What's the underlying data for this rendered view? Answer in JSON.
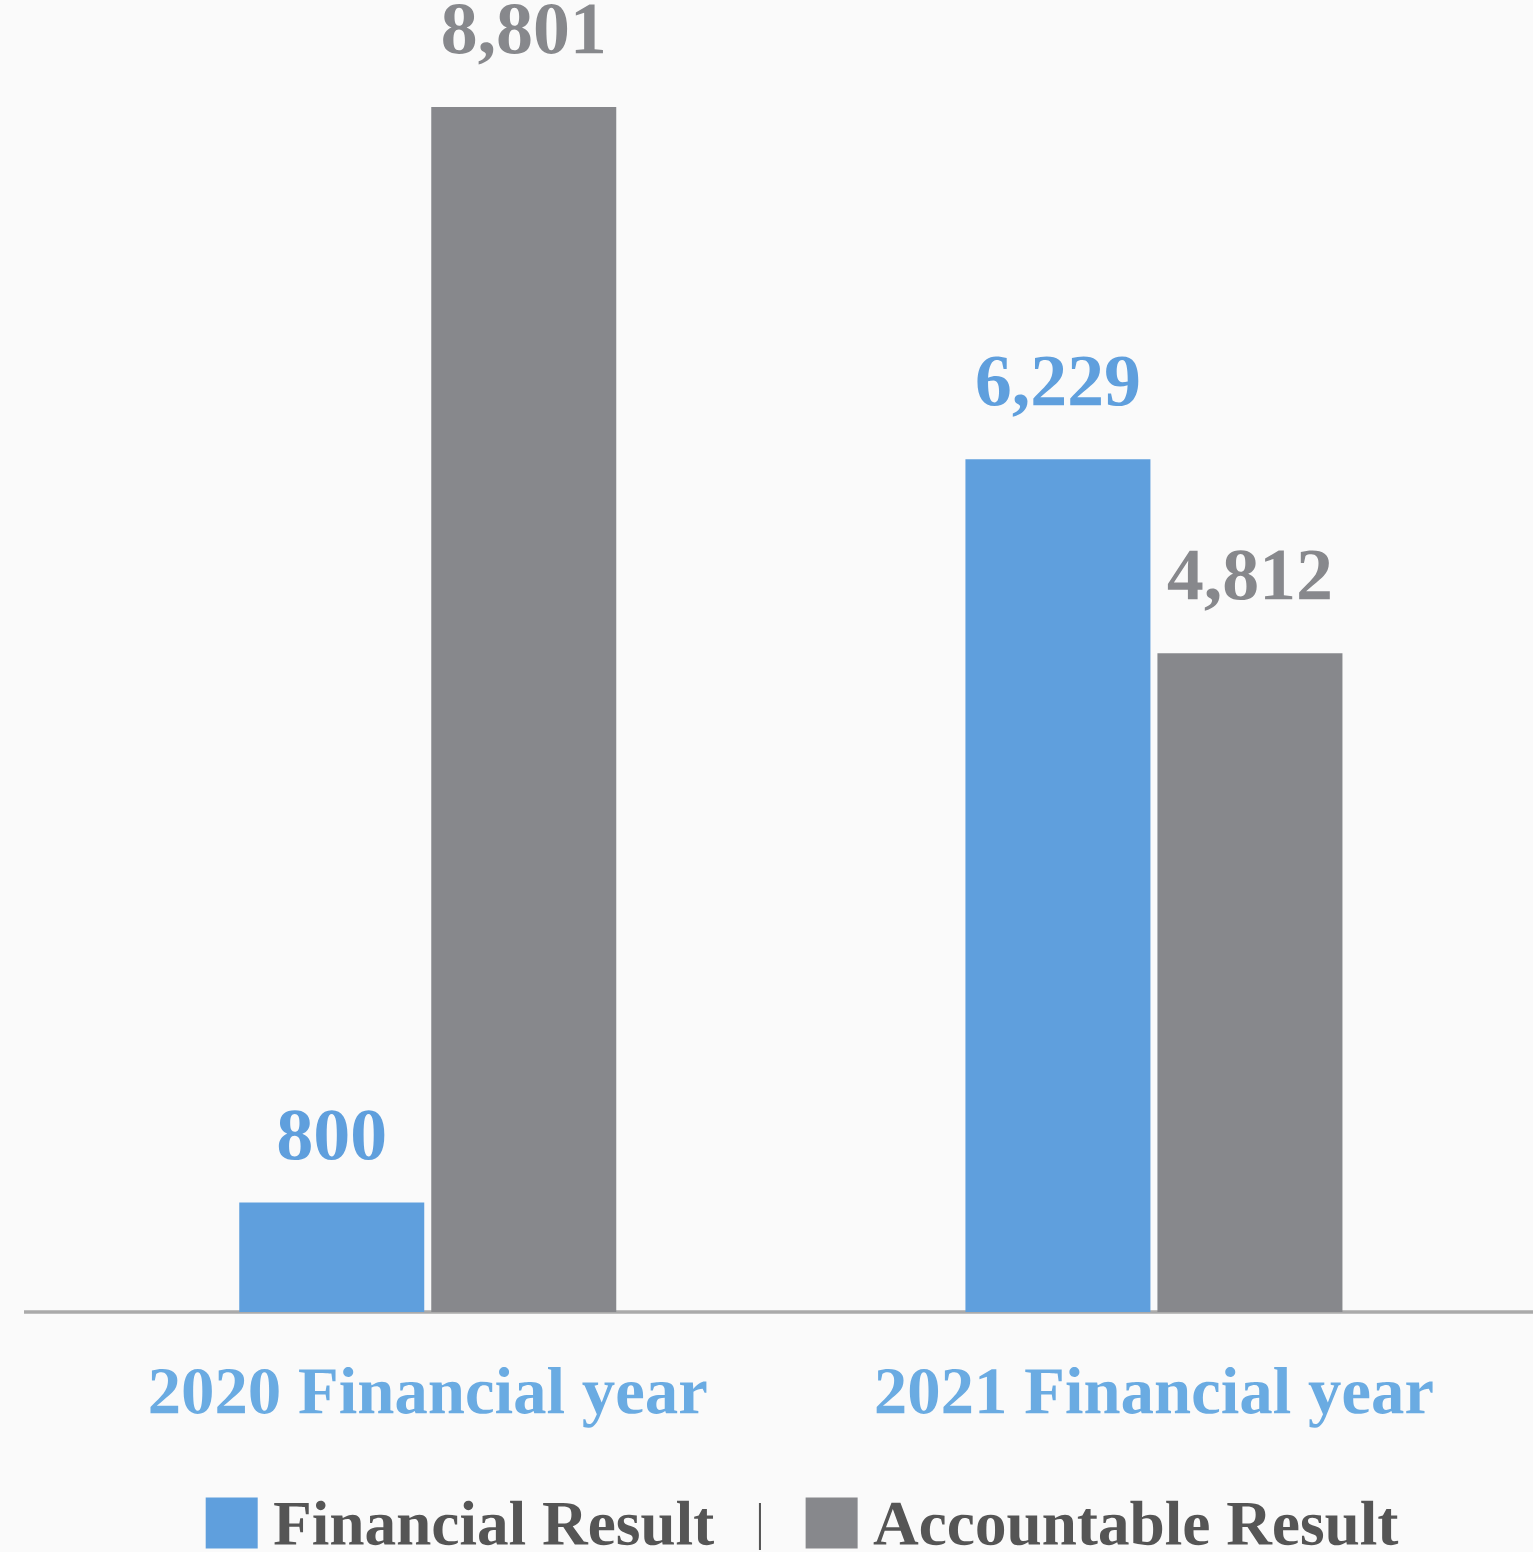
{
  "chart_data": {
    "type": "bar",
    "categories": [
      "2020 Financial year",
      "2021 Financial year"
    ],
    "series": [
      {
        "name": "Financial Result",
        "color": "#5f9fdd",
        "values": [
          800,
          6229
        ],
        "value_labels": [
          "800",
          "6,229"
        ]
      },
      {
        "name": "Accountable Result",
        "color": "#87888c",
        "values": [
          8801,
          4812
        ],
        "value_labels": [
          "8,801",
          "4,812"
        ]
      }
    ],
    "legend": "bottom",
    "grid": false
  }
}
